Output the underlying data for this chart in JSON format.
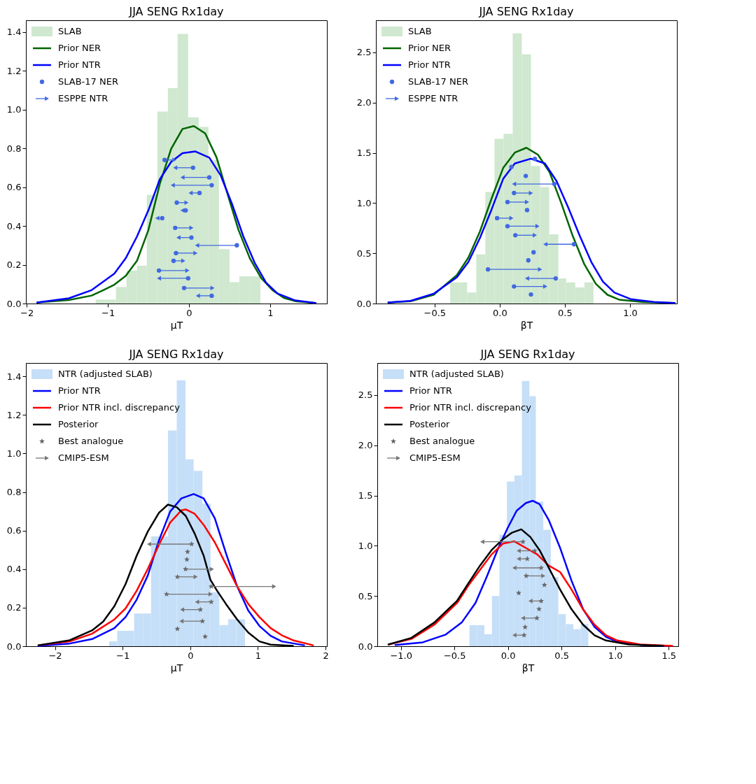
{
  "chart_data": [
    {
      "type": "histogram",
      "title": "JJA SENG Rx1day",
      "xlabel": "μT",
      "xlim": [
        -2.01,
        1.7
      ],
      "ylim": [
        0,
        1.46
      ],
      "xticks": [
        -2,
        -1,
        0,
        1
      ],
      "yticks": [
        {
          "value": 0,
          "label": "0.0"
        },
        0.2,
        0.4,
        0.6,
        0.8,
        {
          "value": 1,
          "label": "1.0"
        },
        1.2,
        1.4
      ],
      "legend": "top left",
      "series": [
        {
          "name": "SLAB",
          "color": "#cfe8cf",
          "bins": [
            -1.15,
            -1.02,
            -0.9,
            -0.77,
            -0.64,
            -0.52,
            -0.39,
            -0.26,
            -0.14,
            -0.01,
            0.12,
            0.24,
            0.37,
            0.5,
            0.62,
            0.75,
            0.88
          ],
          "values": [
            0.02,
            0.02,
            0.085,
            0.17,
            0.195,
            0.56,
            0.99,
            1.11,
            1.39,
            0.96,
            0.91,
            0.74,
            0.28,
            0.11,
            0.14,
            0.14
          ]
        },
        {
          "name": "Prior NER",
          "type": "line",
          "color": "#006400",
          "x": [
            -1.87,
            -1.48,
            -1.2,
            -1.06,
            -0.92,
            -0.78,
            -0.64,
            -0.5,
            -0.36,
            -0.22,
            -0.08,
            0.06,
            0.2,
            0.34,
            0.47,
            0.61,
            0.75,
            0.89,
            1.03,
            1.17,
            1.31,
            1.56
          ],
          "values": [
            0.005,
            0.018,
            0.041,
            0.068,
            0.097,
            0.142,
            0.221,
            0.379,
            0.616,
            0.797,
            0.9,
            0.915,
            0.877,
            0.753,
            0.572,
            0.38,
            0.233,
            0.131,
            0.069,
            0.029,
            0.012,
            0.003
          ]
        },
        {
          "name": "Prior NTR",
          "type": "line",
          "color": "#0000ff",
          "x": [
            -1.87,
            -1.48,
            -1.2,
            -0.92,
            -0.78,
            -0.64,
            -0.5,
            -0.36,
            -0.22,
            -0.08,
            0.08,
            0.25,
            0.39,
            0.53,
            0.67,
            0.81,
            0.95,
            1.09,
            1.31,
            1.56
          ],
          "values": [
            0.005,
            0.027,
            0.069,
            0.154,
            0.233,
            0.346,
            0.481,
            0.64,
            0.73,
            0.775,
            0.784,
            0.752,
            0.661,
            0.514,
            0.346,
            0.21,
            0.108,
            0.052,
            0.016,
            0.003
          ]
        },
        {
          "name": "SLAB-17 NER",
          "type": "scatter",
          "marker": "circle",
          "color": "#4169e1",
          "x": [
            -0.3,
            0.05,
            0.25,
            0.28,
            0.13,
            -0.15,
            -0.04,
            -0.33,
            -0.17,
            0.03,
            0.59,
            -0.16,
            -0.19,
            -0.37,
            -0.01,
            -0.06,
            0.28
          ],
          "values": [
            0.74,
            0.7,
            0.65,
            0.61,
            0.57,
            0.52,
            0.48,
            0.44,
            0.39,
            0.34,
            0.3,
            0.26,
            0.22,
            0.17,
            0.13,
            0.08,
            0.04
          ]
        },
        {
          "name": "ESPPE NTR",
          "type": "scatter",
          "marker": "triangle",
          "color": "#4169e1",
          "x": [
            -0.18,
            -0.17,
            -0.08,
            -0.2,
            0.02,
            -0.03,
            -0.08,
            -0.39,
            0.03,
            -0.13,
            0.1,
            0.08,
            -0.07,
            -0.02,
            -0.37,
            0.29,
            0.11
          ],
          "values": [
            0.74,
            0.7,
            0.65,
            0.61,
            0.57,
            0.52,
            0.48,
            0.44,
            0.39,
            0.34,
            0.3,
            0.26,
            0.22,
            0.17,
            0.13,
            0.08,
            0.04
          ],
          "xerrors": [
            [
              -0.3,
              -0.18
            ],
            [
              -0.17,
              0.05
            ],
            [
              -0.08,
              0.25
            ],
            [
              -0.2,
              0.28
            ],
            [
              0.02,
              0.13
            ],
            [
              -0.15,
              -0.03
            ],
            [
              -0.08,
              -0.04
            ],
            [
              -0.39,
              -0.33
            ],
            [
              -0.17,
              0.03
            ],
            [
              -0.13,
              0.03
            ],
            [
              0.1,
              0.59
            ],
            [
              -0.16,
              0.08
            ],
            [
              -0.19,
              -0.07
            ],
            [
              -0.37,
              -0.02
            ],
            [
              -0.37,
              -0.01
            ],
            [
              -0.06,
              0.29
            ],
            [
              0.11,
              0.28
            ]
          ]
        }
      ]
    },
    {
      "type": "histogram",
      "title": "JJA SENG Rx1day",
      "xlabel": "βT",
      "xlim": [
        -0.95,
        1.36
      ],
      "ylim": [
        0,
        2.82
      ],
      "xticks": [
        -0.5,
        {
          "value": 0,
          "label": "0.0"
        },
        0.5,
        {
          "value": 1,
          "label": "1.0"
        }
      ],
      "yticks": [
        {
          "value": 0,
          "label": "0.0"
        },
        0.5,
        {
          "value": 1,
          "label": "1.0"
        },
        1.5,
        {
          "value": 2,
          "label": "2.0"
        },
        2.5
      ],
      "legend": "top left",
      "series": [
        {
          "name": "SLAB",
          "color": "#cfe8cf",
          "bins": [
            -0.38,
            -0.31,
            -0.25,
            -0.18,
            -0.11,
            -0.04,
            0.03,
            0.1,
            0.17,
            0.24,
            0.31,
            0.38,
            0.45,
            0.51,
            0.58,
            0.65,
            0.72
          ],
          "values": [
            0.21,
            0.21,
            0.11,
            0.49,
            1.11,
            1.64,
            1.69,
            2.69,
            2.48,
            1.37,
            1.16,
            0.69,
            0.25,
            0.21,
            0.16,
            0.21
          ]
        },
        {
          "name": "Prior NER",
          "type": "line",
          "color": "#006400",
          "x": [
            -0.854,
            -0.685,
            -0.507,
            -0.329,
            -0.24,
            -0.151,
            -0.062,
            0.027,
            0.116,
            0.205,
            0.294,
            0.383,
            0.472,
            0.56,
            0.649,
            0.738,
            0.827,
            0.916,
            1.094,
            1.343
          ],
          "values": [
            0.011,
            0.022,
            0.087,
            0.283,
            0.458,
            0.719,
            1.046,
            1.35,
            1.503,
            1.551,
            1.481,
            1.307,
            1.002,
            0.675,
            0.392,
            0.196,
            0.087,
            0.039,
            0.015,
            0.005
          ]
        },
        {
          "name": "Prior NTR",
          "type": "line",
          "color": "#0000ff",
          "x": [
            -0.854,
            -0.685,
            -0.507,
            -0.329,
            -0.24,
            -0.151,
            -0.062,
            0.027,
            0.116,
            0.24,
            0.347,
            0.436,
            0.525,
            0.614,
            0.703,
            0.792,
            0.881,
            1.005,
            1.183,
            1.343
          ],
          "values": [
            0.011,
            0.026,
            0.098,
            0.261,
            0.414,
            0.654,
            0.937,
            1.242,
            1.394,
            1.442,
            1.394,
            1.22,
            0.959,
            0.675,
            0.414,
            0.218,
            0.109,
            0.044,
            0.015,
            0.005
          ]
        },
        {
          "name": "SLAB-17 NER",
          "type": "scatter",
          "marker": "circle",
          "color": "#4169e1",
          "x": [
            0.27,
            0.09,
            0.2,
            0.42,
            0.11,
            0.06,
            0.21,
            -0.02,
            0.06,
            0.12,
            0.57,
            0.26,
            0.22,
            -0.09,
            0.43,
            0.11,
            0.24
          ],
          "values": [
            1.44,
            1.36,
            1.27,
            1.19,
            1.1,
            1.01,
            0.93,
            0.85,
            0.77,
            0.68,
            0.59,
            0.51,
            0.43,
            0.34,
            0.25,
            0.17,
            0.09
          ]
        },
        {
          "name": "ESPPE NTR",
          "type": "scatter",
          "marker": "triangle",
          "color": "#4169e1",
          "x": [
            null,
            null,
            null,
            0.11,
            0.24,
            0.21,
            null,
            0.09,
            0.29,
            0.27,
            0.35,
            null,
            null,
            0.31,
            0.21,
            0.35,
            null
          ],
          "values": [
            null,
            null,
            null,
            1.19,
            1.1,
            1.01,
            null,
            0.85,
            0.77,
            0.68,
            0.59,
            null,
            null,
            0.34,
            0.25,
            0.17,
            null
          ],
          "xerrors": [
            null,
            null,
            null,
            [
              0.11,
              0.42
            ],
            [
              0.11,
              0.24
            ],
            [
              0.06,
              0.21
            ],
            null,
            [
              -0.02,
              0.09
            ],
            [
              0.06,
              0.29
            ],
            [
              0.12,
              0.27
            ],
            [
              0.35,
              0.57
            ],
            null,
            null,
            [
              -0.09,
              0.31
            ],
            [
              0.21,
              0.43
            ],
            [
              0.11,
              0.35
            ],
            null
          ]
        }
      ]
    },
    {
      "type": "histogram",
      "title": "JJA SENG Rx1day",
      "xlabel": "μT",
      "xlim": [
        -2.43,
        2.02
      ],
      "ylim": [
        0,
        1.47
      ],
      "xticks": [
        -2,
        -1,
        0,
        1,
        2
      ],
      "yticks": [
        {
          "value": 0,
          "label": "0.0"
        },
        0.2,
        0.4,
        0.6,
        0.8,
        {
          "value": 1,
          "label": "1.0"
        },
        1.2,
        1.4
      ],
      "legend": "top left",
      "series": [
        {
          "name": "NTR (adjusted SLAB)",
          "color": "#c6dff8",
          "bins": [
            -1.2,
            -1.08,
            -0.95,
            -0.83,
            -0.7,
            -0.58,
            -0.45,
            -0.33,
            -0.2,
            -0.07,
            0.05,
            0.18,
            0.3,
            0.43,
            0.56,
            0.68,
            0.81
          ],
          "values": [
            0.025,
            0.08,
            0.08,
            0.17,
            0.17,
            0.57,
            0.57,
            1.12,
            1.38,
            0.97,
            0.91,
            0.74,
            0.28,
            0.11,
            0.14,
            0.14
          ]
        },
        {
          "name": "Prior NTR",
          "type": "line",
          "color": "#0000ff",
          "x": [
            -2.244,
            -1.782,
            -1.452,
            -1.122,
            -0.957,
            -0.792,
            -0.627,
            -0.462,
            -0.297,
            -0.132,
            0.05,
            0.198,
            0.363,
            0.528,
            0.693,
            0.858,
            1.023,
            1.188,
            1.353,
            1.683
          ],
          "values": [
            0.002,
            0.014,
            0.037,
            0.094,
            0.151,
            0.242,
            0.368,
            0.55,
            0.699,
            0.767,
            0.79,
            0.767,
            0.664,
            0.482,
            0.311,
            0.185,
            0.105,
            0.054,
            0.025,
            0.005
          ]
        },
        {
          "name": "Prior NTR incl. discrepancy",
          "type": "line",
          "color": "#ff0000",
          "x": [
            -2.244,
            -1.782,
            -1.452,
            -1.122,
            -0.957,
            -0.792,
            -0.627,
            -0.462,
            -0.297,
            -0.132,
            -0.066,
            0.066,
            0.198,
            0.363,
            0.528,
            0.693,
            0.858,
            1.023,
            1.188,
            1.353,
            1.518,
            1.815
          ],
          "values": [
            0.005,
            0.025,
            0.065,
            0.139,
            0.196,
            0.288,
            0.402,
            0.527,
            0.642,
            0.705,
            0.71,
            0.687,
            0.63,
            0.539,
            0.425,
            0.311,
            0.219,
            0.151,
            0.094,
            0.057,
            0.031,
            0.005
          ]
        },
        {
          "name": "Posterior",
          "type": "line",
          "color": "#000000",
          "x": [
            -2.244,
            -1.782,
            -1.452,
            -1.287,
            -1.122,
            -0.957,
            -0.792,
            -0.627,
            -0.462,
            -0.33,
            -0.198,
            -0.066,
            0.066,
            0.198,
            0.297,
            0.396,
            0.528,
            0.693,
            0.858,
            1.023,
            1.188,
            1.518
          ],
          "values": [
            0.005,
            0.031,
            0.082,
            0.128,
            0.208,
            0.322,
            0.47,
            0.596,
            0.693,
            0.735,
            0.721,
            0.676,
            0.584,
            0.47,
            0.345,
            0.288,
            0.219,
            0.139,
            0.071,
            0.025,
            0.008,
            0.002
          ]
        },
        {
          "name": "Best analogue",
          "type": "scatter",
          "marker": "star",
          "color": "#666666",
          "x": [
            0.02,
            -0.04,
            -0.05,
            -0.07,
            -0.19,
            0.31,
            -0.35,
            0.31,
            0.15,
            0.18,
            -0.19,
            0.22
          ],
          "values": [
            0.53,
            0.49,
            0.45,
            0.4,
            0.36,
            0.31,
            0.27,
            0.23,
            0.19,
            0.13,
            0.09,
            0.05
          ]
        },
        {
          "name": "CMIP5-ESM",
          "type": "scatter",
          "marker": "triangle",
          "color": "#777777",
          "x": [
            -0.61,
            null,
            null,
            0.32,
            0.08,
            1.24,
            0.3,
            0.1,
            -0.12,
            -0.13,
            null,
            null
          ],
          "values": [
            0.53,
            null,
            null,
            0.4,
            0.36,
            0.31,
            0.27,
            0.23,
            0.19,
            0.13,
            null,
            null
          ],
          "xerrors": [
            [
              -0.61,
              0.02
            ],
            null,
            null,
            [
              -0.07,
              0.32
            ],
            [
              -0.19,
              0.08
            ],
            [
              0.31,
              1.24
            ],
            [
              -0.35,
              0.3
            ],
            [
              0.1,
              0.31
            ],
            [
              -0.12,
              0.15
            ],
            [
              -0.13,
              0.18
            ],
            null,
            null
          ]
        }
      ]
    },
    {
      "type": "histogram",
      "title": "JJA SENG Rx1day",
      "xlabel": "βT",
      "xlim": [
        -1.22,
        1.59
      ],
      "ylim": [
        0,
        2.82
      ],
      "xticks": [
        {
          "value": -1,
          "label": "−1.0"
        },
        -0.5,
        {
          "value": 0,
          "label": "0.0"
        },
        0.5,
        {
          "value": 1,
          "label": "1.0"
        },
        1.5
      ],
      "yticks": [
        {
          "value": 0,
          "label": "0.0"
        },
        0.5,
        {
          "value": 1,
          "label": "1.0"
        },
        1.5,
        {
          "value": 2,
          "label": "2.0"
        },
        2.5
      ],
      "legend": "top left",
      "series": [
        {
          "name": "NTR (adjusted SLAB)",
          "color": "#c6dff8",
          "bins": [
            -0.36,
            -0.29,
            -0.22,
            -0.15,
            -0.08,
            -0.01,
            0.06,
            0.13,
            0.2,
            0.26,
            0.33,
            0.4,
            0.47,
            0.54,
            0.61,
            0.68,
            0.75
          ],
          "values": [
            0.21,
            0.21,
            0.12,
            0.5,
            1.11,
            1.64,
            1.7,
            2.64,
            2.49,
            1.44,
            1.16,
            0.69,
            0.32,
            0.22,
            0.17,
            0.22
          ]
        },
        {
          "name": "Prior NTR",
          "type": "line",
          "color": "#0000ff",
          "x": [
            -1.051,
            -0.795,
            -0.581,
            -0.432,
            -0.303,
            -0.197,
            -0.09,
            -0.004,
            0.081,
            0.167,
            0.231,
            0.295,
            0.38,
            0.487,
            0.594,
            0.701,
            0.808,
            0.915,
            1.021,
            1.235,
            1.491
          ],
          "values": [
            0.013,
            0.039,
            0.116,
            0.236,
            0.432,
            0.694,
            0.978,
            1.175,
            1.349,
            1.426,
            1.448,
            1.415,
            1.258,
            0.978,
            0.65,
            0.369,
            0.192,
            0.094,
            0.044,
            0.013,
            0.004
          ]
        },
        {
          "name": "Prior NTR incl. discrepancy",
          "type": "line",
          "color": "#ff0000",
          "x": [
            -1.115,
            -0.902,
            -0.688,
            -0.474,
            -0.368,
            -0.261,
            -0.154,
            -0.047,
            0.06,
            0.167,
            0.274,
            0.38,
            0.487,
            0.594,
            0.701,
            0.808,
            0.915,
            1.021,
            1.235,
            1.534
          ],
          "values": [
            0.017,
            0.072,
            0.214,
            0.432,
            0.607,
            0.76,
            0.913,
            1.022,
            1.044,
            0.978,
            0.913,
            0.803,
            0.738,
            0.563,
            0.367,
            0.214,
            0.109,
            0.057,
            0.017,
            0.004
          ]
        },
        {
          "name": "Posterior",
          "type": "line",
          "color": "#000000",
          "x": [
            -1.115,
            -0.902,
            -0.688,
            -0.474,
            -0.368,
            -0.261,
            -0.154,
            -0.047,
            0.038,
            0.124,
            0.209,
            0.295,
            0.38,
            0.487,
            0.594,
            0.701,
            0.808,
            0.915,
            1.128,
            1.449
          ],
          "values": [
            0.017,
            0.083,
            0.236,
            0.454,
            0.629,
            0.803,
            0.956,
            1.066,
            1.131,
            1.164,
            1.087,
            0.956,
            0.782,
            0.563,
            0.367,
            0.214,
            0.109,
            0.057,
            0.017,
            0.004
          ]
        },
        {
          "name": "Best analogue",
          "type": "scatter",
          "marker": "star",
          "color": "#666666",
          "x": [
            0.14,
            0.25,
            0.18,
            0.31,
            0.17,
            0.34,
            0.1,
            0.31,
            0.29,
            0.27,
            0.16,
            0.15
          ],
          "values": [
            1.04,
            0.95,
            0.87,
            0.78,
            0.7,
            0.61,
            0.53,
            0.45,
            0.37,
            0.28,
            0.19,
            0.11
          ]
        },
        {
          "name": "CMIP5-ESM",
          "type": "scatter",
          "marker": "triangle",
          "color": "#777777",
          "x": [
            -0.24,
            0.1,
            0.1,
            0.06,
            0.33,
            null,
            null,
            0.21,
            null,
            0.14,
            null,
            0.06
          ],
          "values": [
            1.04,
            0.95,
            0.87,
            0.78,
            0.7,
            null,
            null,
            0.45,
            null,
            0.28,
            null,
            0.11
          ],
          "xerrors": [
            [
              -0.24,
              0.14
            ],
            [
              0.1,
              0.25
            ],
            [
              0.1,
              0.18
            ],
            [
              0.06,
              0.31
            ],
            [
              0.17,
              0.33
            ],
            null,
            null,
            [
              0.21,
              0.31
            ],
            null,
            [
              0.14,
              0.27
            ],
            null,
            [
              0.06,
              0.15
            ]
          ]
        }
      ]
    }
  ]
}
